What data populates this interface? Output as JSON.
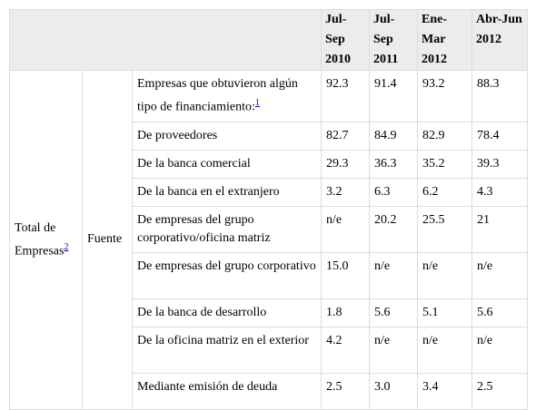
{
  "table": {
    "header": [
      "Jul-Sep 2010",
      "Jul-Sep 2011",
      "Ene-Mar 2012",
      "Abr-Jun 2012"
    ],
    "group_label": "Total de Empresas",
    "group_note": "2",
    "subgroup_label": "Fuente",
    "rows": [
      {
        "label": "Empresas que obtuvieron algún tipo de financiamiento:",
        "note": "1",
        "values": [
          "92.3",
          "91.4",
          "93.2",
          "88.3"
        ]
      },
      {
        "label": "De proveedores",
        "values": [
          "82.7",
          "84.9",
          "82.9",
          "78.4"
        ]
      },
      {
        "label": "De la banca comercial",
        "values": [
          "29.3",
          "36.3",
          "35.2",
          "39.3"
        ]
      },
      {
        "label": "De la banca en el extranjero",
        "values": [
          "3.2",
          "6.3",
          "6.2",
          "4.3"
        ]
      },
      {
        "label": "De empresas del grupo corporativo/oficina matriz",
        "values": [
          "n/e",
          "20.2",
          "25.5",
          "21"
        ]
      },
      {
        "label": "De empresas del grupo corporativo",
        "values": [
          "15.0",
          "n/e",
          "n/e",
          "n/e"
        ]
      },
      {
        "label": "De la banca de desarrollo",
        "values": [
          "1.8",
          "5.6",
          "5.1",
          "5.6"
        ]
      },
      {
        "label": "De la oficina matriz en el exterior",
        "values": [
          "4.2",
          "n/e",
          "n/e",
          "n/e"
        ]
      },
      {
        "label": "Mediante emisión de deuda",
        "values": [
          "2.5",
          "3.0",
          "3.4",
          "2.5"
        ]
      }
    ]
  }
}
